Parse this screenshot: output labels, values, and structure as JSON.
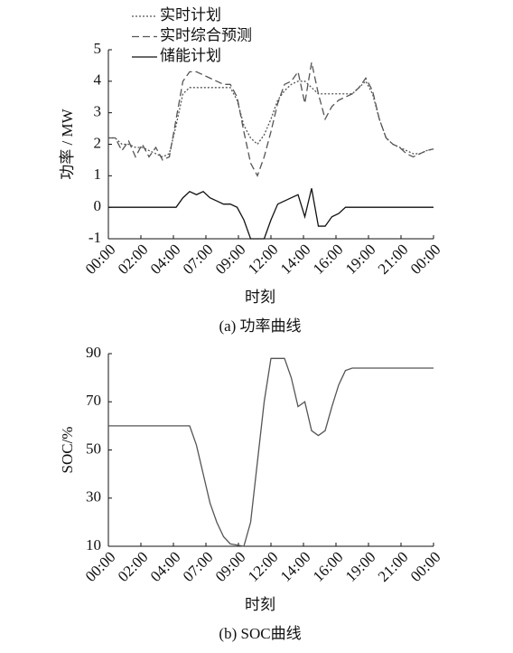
{
  "chart_data": [
    {
      "type": "line",
      "legend": "top",
      "x_label": "时刻",
      "y_label": "功率 / MW",
      "caption": "(a)  功率曲线",
      "x": [
        0,
        0.5,
        1,
        1.5,
        2,
        2.5,
        3,
        3.5,
        4,
        4.5,
        5,
        5.5,
        6,
        6.5,
        7,
        7.5,
        8,
        8.5,
        9,
        9.5,
        10,
        10.5,
        11,
        11.5,
        12,
        12.5,
        13,
        13.5,
        14,
        14.5,
        15,
        15.5,
        16,
        16.5,
        17,
        17.5,
        18,
        18.5,
        19,
        19.5,
        20,
        20.5,
        21,
        21.5,
        22,
        22.5,
        23,
        23.5,
        24
      ],
      "xlim": [
        0,
        24
      ],
      "xticks": [
        {
          "value": 0,
          "label": "00:00"
        },
        {
          "value": 2.4,
          "label": "02:00"
        },
        {
          "value": 4.8,
          "label": "04:00"
        },
        {
          "value": 7.2,
          "label": "07:00"
        },
        {
          "value": 9.6,
          "label": "09:00"
        },
        {
          "value": 12,
          "label": "12:00"
        },
        {
          "value": 14.4,
          "label": "14:00"
        },
        {
          "value": 16.8,
          "label": "16:00"
        },
        {
          "value": 19.2,
          "label": "19:00"
        },
        {
          "value": 21.6,
          "label": "21:00"
        },
        {
          "value": 24,
          "label": "00:00"
        }
      ],
      "ylim": [
        -1,
        5
      ],
      "yticks": [
        -1,
        0,
        1,
        2,
        3,
        4,
        5
      ],
      "series": [
        {
          "name": "实时计划",
          "color": "#555555",
          "dash": "dotted",
          "values": [
            2.2,
            2.2,
            2.0,
            2.0,
            1.9,
            1.9,
            1.8,
            1.7,
            1.6,
            1.7,
            2.6,
            3.6,
            3.8,
            3.8,
            3.8,
            3.8,
            3.8,
            3.8,
            3.8,
            3.4,
            2.6,
            2.2,
            2.0,
            2.3,
            2.8,
            3.4,
            3.7,
            3.9,
            4.0,
            4.0,
            3.8,
            3.6,
            3.6,
            3.6,
            3.6,
            3.6,
            3.6,
            3.8,
            4.0,
            3.6,
            2.8,
            2.2,
            2.0,
            1.9,
            1.8,
            1.7,
            1.7,
            1.8,
            1.85
          ]
        },
        {
          "name": "实时综合预测",
          "color": "#555555",
          "dash": "dashed",
          "values": [
            2.2,
            2.2,
            1.8,
            2.1,
            1.6,
            2.0,
            1.6,
            1.9,
            1.5,
            1.6,
            2.8,
            4.0,
            4.3,
            4.3,
            4.2,
            4.1,
            4.0,
            3.9,
            3.9,
            3.5,
            2.4,
            1.4,
            1.0,
            1.6,
            2.4,
            3.3,
            3.9,
            4.0,
            4.3,
            3.3,
            4.6,
            3.6,
            2.8,
            3.2,
            3.4,
            3.5,
            3.6,
            3.8,
            4.1,
            3.7,
            2.8,
            2.2,
            2.0,
            1.9,
            1.7,
            1.6,
            1.7,
            1.8,
            1.85
          ]
        },
        {
          "name": "储能计划",
          "color": "#111111",
          "dash": "solid",
          "values": [
            0,
            0,
            0,
            0,
            0,
            0,
            0,
            0,
            0,
            0,
            0,
            0.3,
            0.5,
            0.4,
            0.5,
            0.3,
            0.2,
            0.1,
            0.1,
            0,
            -0.4,
            -1,
            -1,
            -1,
            -0.4,
            0.1,
            0.2,
            0.3,
            0.4,
            -0.3,
            0.6,
            -0.6,
            -0.6,
            -0.3,
            -0.2,
            0,
            0,
            0,
            0,
            0,
            0,
            0,
            0,
            0,
            0,
            0,
            0,
            0,
            0
          ]
        }
      ]
    },
    {
      "type": "line",
      "x_label": "时刻",
      "y_label": "SOC/%",
      "caption": "(b)  SOC曲线",
      "x": [
        0,
        0.5,
        1,
        1.5,
        2,
        2.5,
        3,
        3.5,
        4,
        4.5,
        5,
        5.5,
        6,
        6.5,
        7,
        7.5,
        8,
        8.5,
        9,
        9.5,
        10,
        10.5,
        11,
        11.5,
        12,
        12.5,
        13,
        13.5,
        14,
        14.5,
        15,
        15.5,
        16,
        16.5,
        17,
        17.5,
        18,
        18.5,
        19,
        19.5,
        20,
        20.5,
        21,
        21.5,
        22,
        22.5,
        23,
        23.5,
        24
      ],
      "xlim": [
        0,
        24
      ],
      "xticks": [
        {
          "value": 0,
          "label": "00:00"
        },
        {
          "value": 2.4,
          "label": "02:00"
        },
        {
          "value": 4.8,
          "label": "04:00"
        },
        {
          "value": 7.2,
          "label": "07:00"
        },
        {
          "value": 9.6,
          "label": "09:00"
        },
        {
          "value": 12,
          "label": "12:00"
        },
        {
          "value": 14.4,
          "label": "14:00"
        },
        {
          "value": 16.8,
          "label": "16:00"
        },
        {
          "value": 19.2,
          "label": "19:00"
        },
        {
          "value": 21.6,
          "label": "21:00"
        },
        {
          "value": 24,
          "label": "00:00"
        }
      ],
      "ylim": [
        10,
        90
      ],
      "yticks": [
        10,
        30,
        50,
        70,
        90
      ],
      "series": [
        {
          "color": "#555555",
          "dash": "solid",
          "values": [
            60,
            60,
            60,
            60,
            60,
            60,
            60,
            60,
            60,
            60,
            60,
            60,
            60,
            52,
            40,
            28,
            20,
            14,
            11,
            10.5,
            10,
            20,
            45,
            70,
            88,
            88,
            88,
            80,
            68,
            70,
            58,
            56,
            58,
            68,
            77,
            83,
            84,
            84,
            84,
            84,
            84,
            84,
            84,
            84,
            84,
            84,
            84,
            84,
            84
          ]
        }
      ]
    }
  ]
}
